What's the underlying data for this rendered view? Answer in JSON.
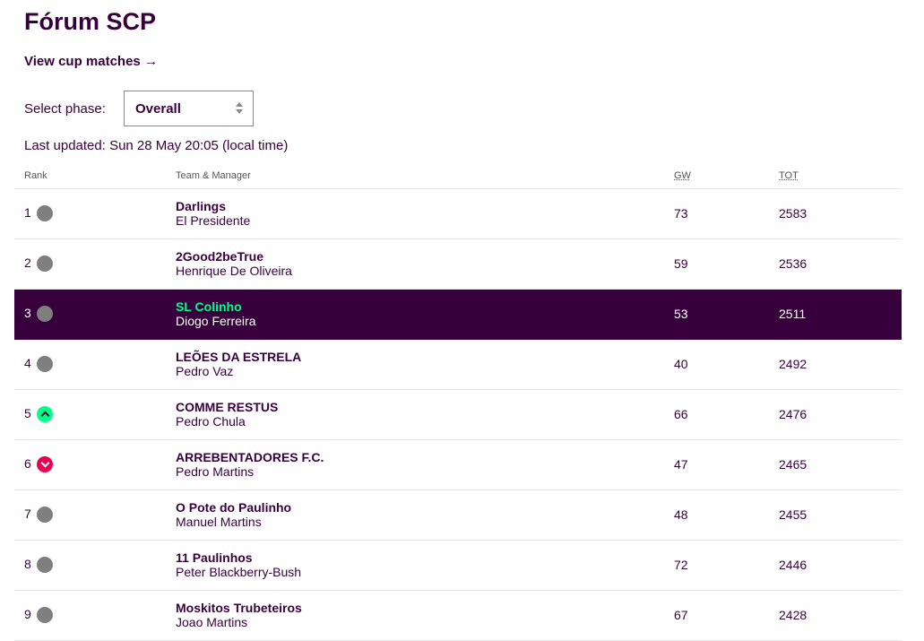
{
  "header": {
    "title": "Fórum SCP",
    "cup_link": "View cup matches →"
  },
  "phase": {
    "label": "Select phase:",
    "selected": "Overall"
  },
  "last_updated": "Last updated: Sun 28 May 20:05 (local time)",
  "table": {
    "columns": {
      "rank": "Rank",
      "team": "Team & Manager",
      "gw": "GW",
      "tot": "TOT"
    },
    "rows": [
      {
        "rank": "1",
        "movement": "same",
        "team": "Darlings",
        "manager": "El Presidente",
        "gw": "73",
        "tot": "2583"
      },
      {
        "rank": "2",
        "movement": "same",
        "team": "2Good2beTrue",
        "manager": "Henrique De Oliveira",
        "gw": "59",
        "tot": "2536"
      },
      {
        "rank": "3",
        "movement": "same",
        "team": "SL Colinho",
        "manager": "Diogo Ferreira",
        "gw": "53",
        "tot": "2511"
      },
      {
        "rank": "4",
        "movement": "same",
        "team": "LEÕES DA ESTRELA",
        "manager": "Pedro Vaz",
        "gw": "40",
        "tot": "2492"
      },
      {
        "rank": "5",
        "movement": "up",
        "team": "COMME RESTUS",
        "manager": "Pedro Chula",
        "gw": "66",
        "tot": "2476"
      },
      {
        "rank": "6",
        "movement": "down",
        "team": "ARREBENTADORES F.C.",
        "manager": "Pedro Martins",
        "gw": "47",
        "tot": "2465"
      },
      {
        "rank": "7",
        "movement": "same",
        "team": "O Pote do Paulinho",
        "manager": "Manuel Martins",
        "gw": "48",
        "tot": "2455"
      },
      {
        "rank": "8",
        "movement": "same",
        "team": "11 Paulinhos",
        "manager": "Peter Blackberry-Bush",
        "gw": "72",
        "tot": "2446"
      },
      {
        "rank": "9",
        "movement": "same",
        "team": "Moskitos Trubeteiros",
        "manager": "Joao Martins",
        "gw": "67",
        "tot": "2428"
      }
    ]
  },
  "colors": {
    "primary": "#37003c",
    "accent_green": "#00ff87",
    "accent_pink": "#e90052",
    "neutral": "#7f7f7f"
  }
}
